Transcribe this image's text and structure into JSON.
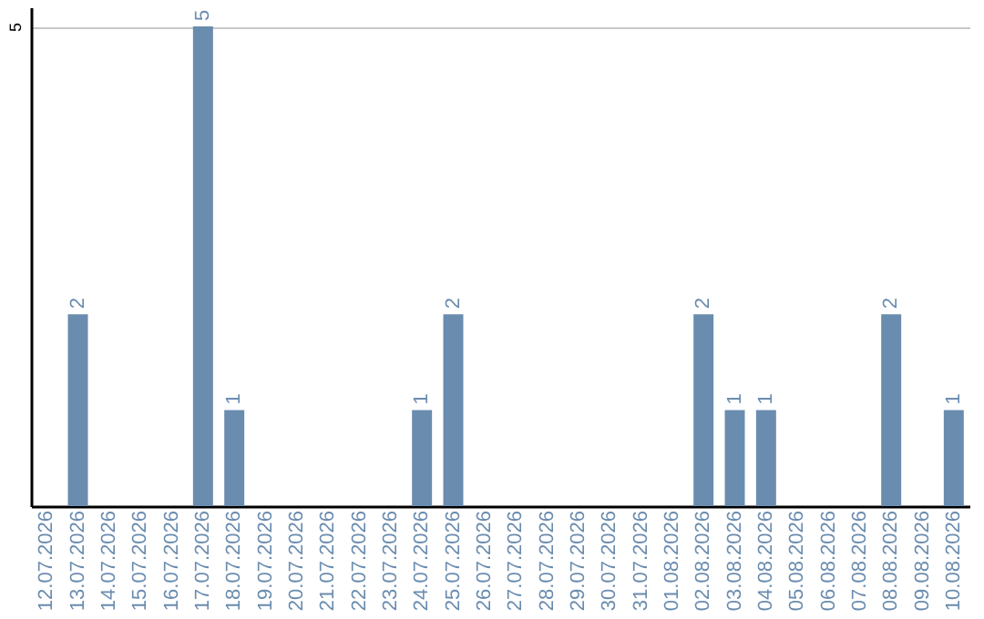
{
  "chart_data": {
    "type": "bar",
    "categories": [
      "12.07.2026",
      "13.07.2026",
      "14.07.2026",
      "15.07.2026",
      "16.07.2026",
      "17.07.2026",
      "18.07.2026",
      "19.07.2026",
      "20.07.2026",
      "21.07.2026",
      "22.07.2026",
      "23.07.2026",
      "24.07.2026",
      "25.07.2026",
      "26.07.2026",
      "27.07.2026",
      "28.07.2026",
      "29.07.2026",
      "30.07.2026",
      "31.07.2026",
      "01.08.2026",
      "02.08.2026",
      "03.08.2026",
      "04.08.2026",
      "05.08.2026",
      "06.08.2026",
      "07.08.2026",
      "08.08.2026",
      "09.08.2026",
      "10.08.2026"
    ],
    "values": [
      0,
      2,
      0,
      0,
      0,
      5,
      1,
      0,
      0,
      0,
      0,
      0,
      1,
      2,
      0,
      0,
      0,
      0,
      0,
      0,
      0,
      2,
      1,
      1,
      0,
      0,
      0,
      2,
      0,
      1
    ],
    "value_labels": [
      null,
      "2",
      null,
      null,
      null,
      "5",
      "1",
      null,
      null,
      null,
      null,
      null,
      "1",
      "2",
      null,
      null,
      null,
      null,
      null,
      null,
      null,
      "2",
      "1",
      "1",
      null,
      null,
      null,
      "2",
      null,
      "1"
    ],
    "color": "#6a8caf",
    "ylim": [
      0,
      5.2
    ],
    "yticks": [
      5
    ],
    "grid": "y"
  }
}
